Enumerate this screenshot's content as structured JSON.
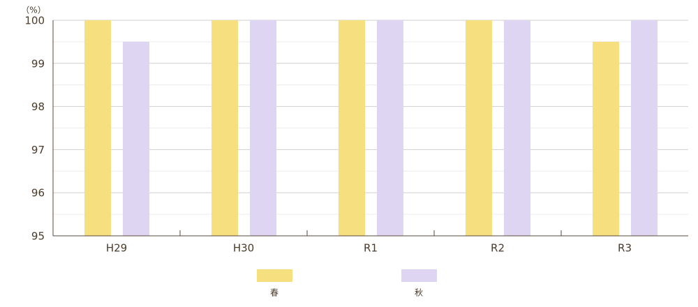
{
  "chart_data": {
    "type": "bar",
    "unit_label": "（%）",
    "categories": [
      "H29",
      "H30",
      "R1",
      "R2",
      "R3"
    ],
    "series": [
      {
        "name": "春",
        "color": "#f6df7f",
        "values": [
          100,
          100,
          100,
          100,
          99.5
        ]
      },
      {
        "name": "秋",
        "color": "#ddd5f1",
        "values": [
          99.5,
          100,
          100,
          100,
          100
        ]
      }
    ],
    "ylim": [
      95,
      100
    ],
    "yticks": [
      95,
      96,
      97,
      98,
      99,
      100
    ],
    "minor_yticks": [
      95.5,
      96.5,
      97.5,
      98.5,
      99.5
    ],
    "grid": true,
    "legend": "bottom"
  }
}
